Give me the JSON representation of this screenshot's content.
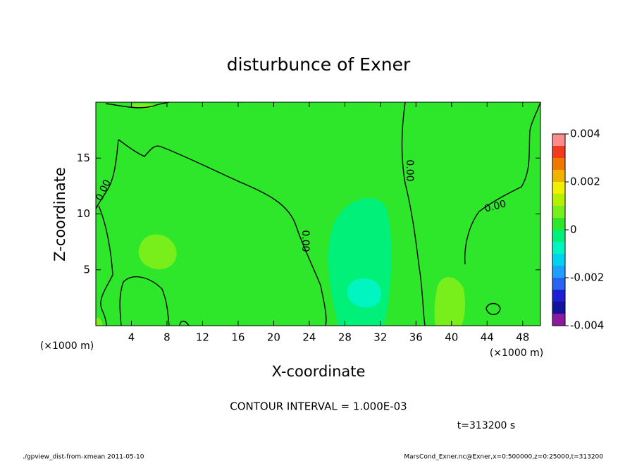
{
  "chart_data": {
    "type": "contour",
    "title": "disturbunce of Exner",
    "x_label": "X-coordinate",
    "y_label": "Z-coordinate",
    "x_unit": "(×1000 m)",
    "y_unit": "(×1000 m)",
    "xlim": [
      0,
      50
    ],
    "xticks": [
      4,
      8,
      12,
      16,
      20,
      24,
      28,
      32,
      36,
      40,
      44,
      48
    ],
    "ylim": [
      0,
      20
    ],
    "yticks": [
      5,
      10,
      15
    ],
    "colorbar": {
      "levels": [
        -0.004,
        -0.0035,
        -0.003,
        -0.0025,
        -0.002,
        -0.0015,
        -0.001,
        -0.0005,
        0,
        0.0005,
        0.001,
        0.0015,
        0.002,
        0.0025,
        0.003,
        0.0035,
        0.004
      ],
      "colors": [
        "#8c1aa0",
        "#14149a",
        "#1e1ed2",
        "#2864f0",
        "#1ea0ff",
        "#00d2f0",
        "#00f5c0",
        "#00f07a",
        "#2ee62a",
        "#78ee1a",
        "#b4f000",
        "#f0f000",
        "#f0b400",
        "#f07800",
        "#f03c1e",
        "#ff8c8c"
      ],
      "ticks": [
        -0.004,
        -0.002,
        0,
        0.002,
        0.004
      ]
    },
    "contour_labels": [
      "0.00",
      "0.00",
      "0.00",
      "0.00"
    ],
    "annotations": [
      "CONTOUR INTERVAL = 1.000E-03",
      "t=313200 s"
    ],
    "footer_left": "./gpview_dist-from-xmean  2011-05-10",
    "footer_right": "MarsCond_Exner.nc@Exner,x=0:500000,z=0:25000,t=313200"
  }
}
